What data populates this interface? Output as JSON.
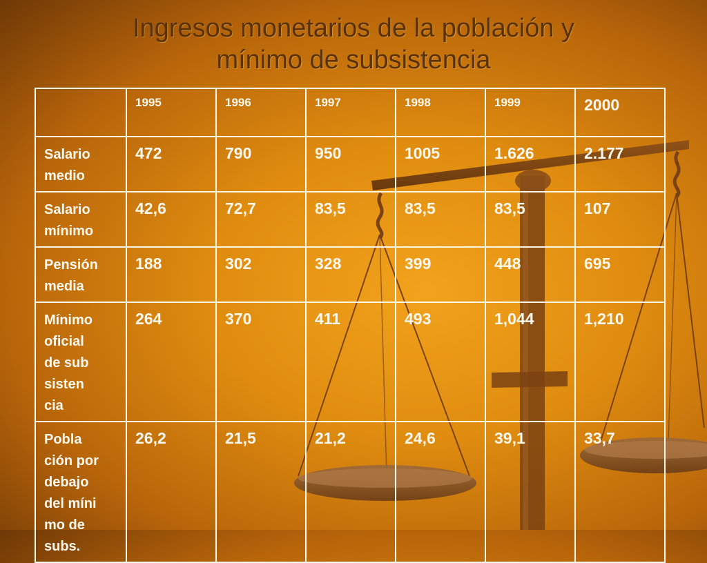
{
  "title_lines": [
    "Ingresos monetarios de la población y",
    "mínimo de subsistencia"
  ],
  "table": {
    "years": [
      "1995",
      "1996",
      "1997",
      "1998",
      "1999",
      "2000"
    ],
    "rows": [
      {
        "label_lines": [
          "Salario",
          "medio"
        ],
        "values": [
          "472",
          "790",
          "950",
          "1005",
          "1.626",
          "2.177"
        ]
      },
      {
        "label_lines": [
          "Salario",
          "mínimo"
        ],
        "values": [
          "42,6",
          "72,7",
          "83,5",
          "83,5",
          "83,5",
          "107"
        ]
      },
      {
        "label_lines": [
          "Pensión",
          "media"
        ],
        "values": [
          "188",
          "302",
          "328",
          "399",
          "448",
          "695"
        ]
      },
      {
        "label_lines": [
          "Mínimo",
          "oficial",
          "de sub",
          "sisten",
          "cia"
        ],
        "values": [
          "264",
          "370",
          "411",
          "493",
          "1,044",
          "1,210"
        ]
      },
      {
        "label_lines": [
          "Pobla",
          "ción por",
          "debajo",
          "del míni",
          "mo de",
          "subs."
        ],
        "values": [
          "26,2",
          "21,5",
          "21,2",
          "24,6",
          "39,1",
          "33,7"
        ]
      }
    ]
  },
  "colors": {
    "accent": "#e99a16",
    "title": "#5a3206",
    "text": "#fff8ee"
  },
  "decor": "balance-scale-icon"
}
